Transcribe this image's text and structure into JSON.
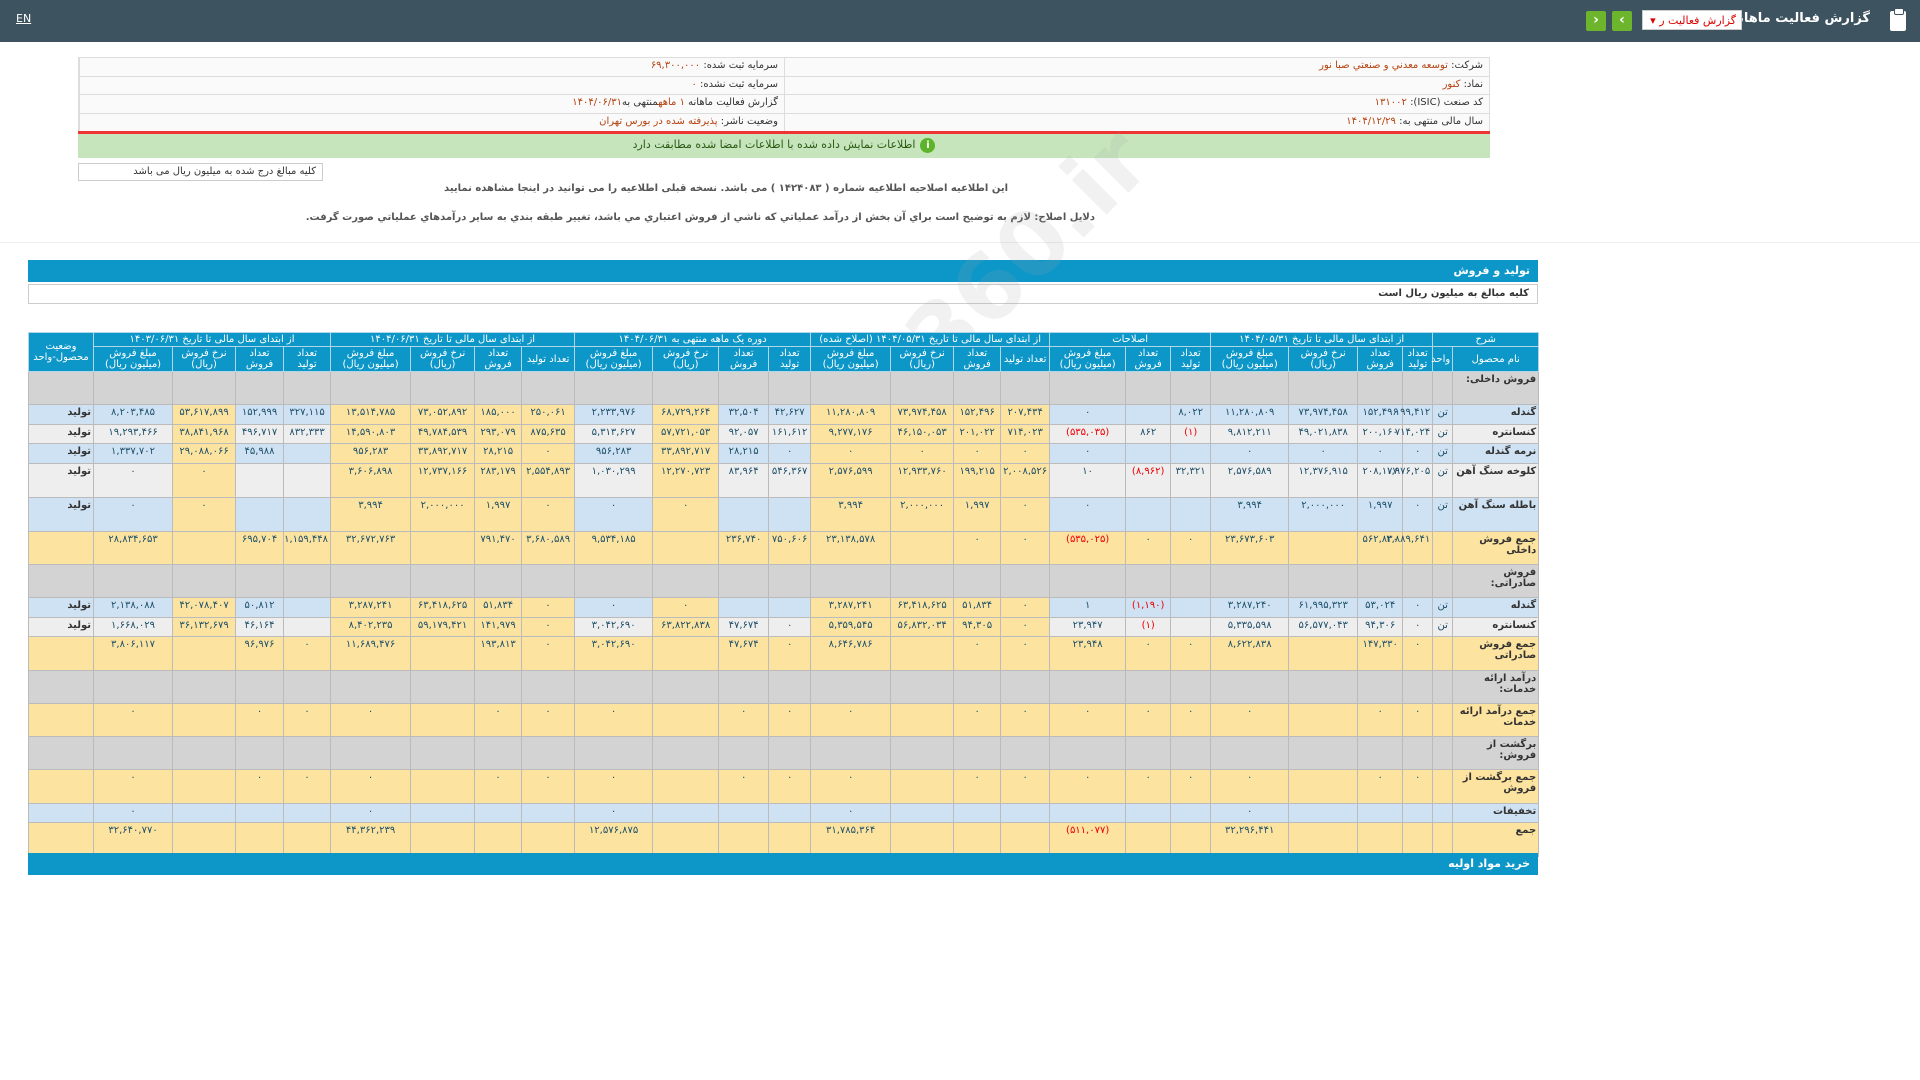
{
  "header": {
    "title": "گزارش فعالیت ماهانه",
    "select_value": "گزارش فعالیت ر",
    "lang": "EN"
  },
  "info": {
    "company_label": "شرکت:",
    "company": "توسعه معدني و صنعتي صبا نور",
    "capital_label": "سرمایه ثبت شده:",
    "capital": "۶۹,۳۰۰,۰۰۰",
    "symbol_label": "نماد:",
    "symbol": "کنور",
    "unreg_capital_label": "سرمایه ثبت نشده:",
    "unreg_capital": "۰",
    "isic_label": "کد صنعت (ISIC):",
    "isic": "۱۳۱۰۰۲",
    "report_label": "گزارش فعالیت ماهانه",
    "report_period": "۱ ماهه",
    "report_end_label": "منتهی به",
    "report_end": "۱۴۰۴/۰۶/۳۱",
    "fiscal_label": "سال مالی منتهی به:",
    "fiscal": "۱۴۰۴/۱۲/۲۹",
    "status_label": "وضعیت ناشر:",
    "status": "پذیرفته شده در بورس تهران"
  },
  "banner": "اطلاعات نمایش داده شده با اطلاعات امضا شده مطابقت دارد",
  "note": "کلیه مبالغ درج شده به میلیون ریال می باشد",
  "message1": "این اطلاعیه اصلاحیه اطلاعیه شماره ( ۱۴۲۴۰۸۳ ) می باشد. نسخه قبلی اطلاعیه را می توانید در اینجا مشاهده نمایید",
  "message2": "دلایل اصلاح: لازم به توضیح است براي آن بخش از درآمد عملياتي که ناشي از فروش اعتباري مي باشد، تغيير طبقه بندي به ساير درآمدهاي عملياتي صورت گرفت.",
  "section_title": "تولید و فروش",
  "section_note": "کلیه مبالغ به میلیون ریال است",
  "next_section": "خرید مواد اولیه",
  "watermark": "@Codal360.ir",
  "table": {
    "desc": "شرح",
    "status_head": "وضعیت محصول-واحد",
    "name_head": "نام محصول",
    "unit_head": "واحد",
    "groups": [
      "از ابتدای سال مالی تا تاریخ ۱۴۰۴/۰۵/۳۱",
      "اصلاحات",
      "از ابتدای سال مالی تا تاریخ ۱۴۰۴/۰۵/۳۱ (اصلاح شده)",
      "دوره یک ماهه منتهی به ۱۴۰۴/۰۶/۳۱",
      "از ابتدای سال مالی تا تاریخ ۱۴۰۴/۰۶/۳۱",
      "از ابتدای سال مالی تا تاریخ ۱۴۰۳/۰۶/۳۱"
    ],
    "sub4": [
      "تعداد تولید",
      "تعداد فروش",
      "نرخ فروش (ریال)",
      "مبلغ فروش (میلیون ریال)"
    ],
    "sub3": [
      "تعداد تولید",
      "تعداد فروش",
      "مبلغ فروش (میلیون ریال)"
    ],
    "rows": [
      {
        "type": "section",
        "label": "فروش داخلی:"
      },
      {
        "type": "product",
        "label": "گندله",
        "unit": "تن",
        "status": "تولید",
        "cells": [
          "۱۹۹,۴۱۲",
          "۱۵۲,۴۹۶",
          "۷۳,۹۷۴,۴۵۸",
          "۱۱,۲۸۰,۸۰۹",
          "۸,۰۲۲",
          "",
          "۰",
          "۲۰۷,۴۳۴",
          "۱۵۲,۴۹۶",
          "۷۳,۹۷۴,۴۵۸",
          "۱۱,۲۸۰,۸۰۹",
          "۴۲,۶۲۷",
          "۳۲,۵۰۴",
          "۶۸,۷۲۹,۲۶۴",
          "۲,۲۳۳,۹۷۶",
          "۲۵۰,۰۶۱",
          "۱۸۵,۰۰۰",
          "۷۳,۰۵۲,۸۹۲",
          "۱۳,۵۱۴,۷۸۵",
          "۳۲۷,۱۱۵",
          "۱۵۲,۹۹۹",
          "۵۳,۶۱۷,۸۹۹",
          "۸,۲۰۳,۴۸۵"
        ]
      },
      {
        "type": "product",
        "label": "کنسانتره",
        "unit": "تن",
        "status": "تولید",
        "cells": [
          "۷۱۴,۰۲۴",
          "۲۰۰,۱۶۰",
          "۴۹,۰۲۱,۸۳۸",
          "۹,۸۱۲,۲۱۱",
          "(۱)",
          "۸۶۲",
          "(۵۳۵,۰۳۵)",
          "۷۱۴,۰۲۳",
          "۲۰۱,۰۲۲",
          "۴۶,۱۵۰,۰۵۳",
          "۹,۲۷۷,۱۷۶",
          "۱۶۱,۶۱۲",
          "۹۲,۰۵۷",
          "۵۷,۷۲۱,۰۵۳",
          "۵,۳۱۳,۶۲۷",
          "۸۷۵,۶۳۵",
          "۲۹۳,۰۷۹",
          "۴۹,۷۸۴,۵۳۹",
          "۱۴,۵۹۰,۸۰۳",
          "۸۳۲,۳۳۳",
          "۴۹۶,۷۱۷",
          "۳۸,۸۴۱,۹۶۸",
          "۱۹,۲۹۳,۴۶۶"
        ]
      },
      {
        "type": "product",
        "label": "نرمه گندله",
        "unit": "تن",
        "status": "تولید",
        "cells": [
          "۰",
          "۰",
          "۰",
          "۰",
          "",
          "",
          "۰",
          "۰",
          "۰",
          "۰",
          "۰",
          "۰",
          "۲۸,۲۱۵",
          "۳۳,۸۹۲,۷۱۷",
          "۹۵۶,۲۸۳",
          "۰",
          "۲۸,۲۱۵",
          "۳۳,۸۹۲,۷۱۷",
          "۹۵۶,۲۸۳",
          "",
          "۴۵,۹۸۸",
          "۲۹,۰۸۸,۰۶۶",
          "۱,۳۳۷,۷۰۲"
        ]
      },
      {
        "type": "product",
        "tall": true,
        "label": "کلوخه سنگ آهن",
        "unit": "تن",
        "status": "تولید",
        "cells": [
          "۱,۹۷۶,۲۰۵",
          "۲۰۸,۱۷۷",
          "۱۲,۳۷۶,۹۱۵",
          "۲,۵۷۶,۵۸۹",
          "۳۲,۳۲۱",
          "(۸,۹۶۲)",
          "۱۰",
          "۲,۰۰۸,۵۲۶",
          "۱۹۹,۲۱۵",
          "۱۲,۹۳۳,۷۶۰",
          "۲,۵۷۶,۵۹۹",
          "۵۴۶,۳۶۷",
          "۸۳,۹۶۴",
          "۱۲,۲۷۰,۷۲۳",
          "۱,۰۳۰,۲۹۹",
          "۲,۵۵۴,۸۹۳",
          "۲۸۳,۱۷۹",
          "۱۲,۷۳۷,۱۶۶",
          "۳,۶۰۶,۸۹۸",
          "",
          "",
          "۰",
          "۰"
        ]
      },
      {
        "type": "product",
        "tall": true,
        "label": "باطله سنگ آهن",
        "unit": "تن",
        "status": "تولید",
        "cells": [
          "۰",
          "۱,۹۹۷",
          "۲,۰۰۰,۰۰۰",
          "۳,۹۹۴",
          "",
          "",
          "۰",
          "۰",
          "۱,۹۹۷",
          "۲,۰۰۰,۰۰۰",
          "۳,۹۹۴",
          "",
          "",
          "۰",
          "۰",
          "۰",
          "۱,۹۹۷",
          "۲,۰۰۰,۰۰۰",
          "۳,۹۹۴",
          "",
          "",
          "۰",
          "۰"
        ]
      },
      {
        "type": "total",
        "label": "جمع فروش داخلی",
        "cells": [
          "۲,۸۸۹,۶۴۱",
          "۵۶۲,۸۳۰",
          "",
          "۲۳,۶۷۳,۶۰۳",
          "۰",
          "۰",
          "(۵۳۵,۰۲۵)",
          "۰",
          "۰",
          "",
          "۲۳,۱۳۸,۵۷۸",
          "۷۵۰,۶۰۶",
          "۲۳۶,۷۴۰",
          "",
          "۹,۵۳۴,۱۸۵",
          "۳,۶۸۰,۵۸۹",
          "۷۹۱,۴۷۰",
          "",
          "۳۲,۶۷۲,۷۶۳",
          "۱,۱۵۹,۴۴۸",
          "۶۹۵,۷۰۴",
          "",
          "۲۸,۸۳۴,۶۵۳"
        ]
      },
      {
        "type": "section",
        "label": "فروش صادراتی:"
      },
      {
        "type": "product",
        "label": "گندله",
        "unit": "تن",
        "status": "تولید",
        "cells": [
          "۰",
          "۵۳,۰۲۴",
          "۶۱,۹۹۵,۳۲۳",
          "۳,۲۸۷,۲۴۰",
          "",
          "(۱,۱۹۰)",
          "۱",
          "۰",
          "۵۱,۸۳۴",
          "۶۳,۴۱۸,۶۲۵",
          "۳,۲۸۷,۲۴۱",
          "",
          "",
          "۰",
          "۰",
          "۰",
          "۵۱,۸۳۴",
          "۶۳,۴۱۸,۶۲۵",
          "۳,۲۸۷,۲۴۱",
          "",
          "۵۰,۸۱۲",
          "۴۲,۰۷۸,۴۰۷",
          "۲,۱۳۸,۰۸۸"
        ]
      },
      {
        "type": "product",
        "label": "کنسانتره",
        "unit": "تن",
        "status": "تولید",
        "cells": [
          "۰",
          "۹۴,۳۰۶",
          "۵۶,۵۷۷,۰۴۳",
          "۵,۳۳۵,۵۹۸",
          "",
          "(۱)",
          "۲۳,۹۴۷",
          "۰",
          "۹۴,۳۰۵",
          "۵۶,۸۳۲,۰۳۴",
          "۵,۳۵۹,۵۴۵",
          "۰",
          "۴۷,۶۷۴",
          "۶۳,۸۲۲,۸۳۸",
          "۳,۰۴۲,۶۹۰",
          "۰",
          "۱۴۱,۹۷۹",
          "۵۹,۱۷۹,۴۲۱",
          "۸,۴۰۲,۲۳۵",
          "",
          "۴۶,۱۶۴",
          "۳۶,۱۳۲,۶۷۹",
          "۱,۶۶۸,۰۲۹"
        ]
      },
      {
        "type": "total",
        "label": "جمع فروش صادراتی",
        "cells": [
          "۰",
          "۱۴۷,۳۳۰",
          "",
          "۸,۶۲۲,۸۳۸",
          "۰",
          "۰",
          "۲۳,۹۴۸",
          "۰",
          "۰",
          "",
          "۸,۶۴۶,۷۸۶",
          "۰",
          "۴۷,۶۷۴",
          "",
          "۳,۰۴۲,۶۹۰",
          "۰",
          "۱۹۳,۸۱۳",
          "",
          "۱۱,۶۸۹,۴۷۶",
          "۰",
          "۹۶,۹۷۶",
          "",
          "۳,۸۰۶,۱۱۷"
        ]
      },
      {
        "type": "section",
        "label": "درآمد ارائه خدمات:"
      },
      {
        "type": "total",
        "label": "جمع درآمد ارائه خدمات",
        "cells": [
          "۰",
          "۰",
          "",
          "۰",
          "۰",
          "۰",
          "۰",
          "۰",
          "۰",
          "",
          "۰",
          "۰",
          "۰",
          "",
          "۰",
          "۰",
          "۰",
          "",
          "۰",
          "۰",
          "۰",
          "",
          "۰"
        ]
      },
      {
        "type": "section",
        "label": "برگشت از فروش:"
      },
      {
        "type": "total",
        "label": "جمع برگشت از فروش",
        "cells": [
          "۰",
          "۰",
          "",
          "۰",
          "۰",
          "۰",
          "۰",
          "۰",
          "۰",
          "",
          "۰",
          "۰",
          "۰",
          "",
          "۰",
          "۰",
          "۰",
          "",
          "۰",
          "۰",
          "۰",
          "",
          "۰"
        ]
      },
      {
        "type": "discount",
        "label": "تخفیفات",
        "cells": [
          "",
          "",
          "",
          "۰",
          "",
          "",
          "",
          "",
          "",
          "",
          "۰",
          "",
          "",
          "",
          "۰",
          "",
          "",
          "",
          "۰",
          "",
          "",
          "",
          "۰"
        ]
      },
      {
        "type": "sum",
        "label": "جمع",
        "cells": [
          "",
          "",
          "",
          "۳۲,۲۹۶,۴۴۱",
          "",
          "",
          "(۵۱۱,۰۷۷)",
          "",
          "",
          "",
          "۳۱,۷۸۵,۳۶۴",
          "",
          "",
          "",
          "۱۲,۵۷۶,۸۷۵",
          "",
          "",
          "",
          "۴۴,۳۶۲,۲۳۹",
          "",
          "",
          "",
          "۳۲,۶۴۰,۷۷۰"
        ]
      }
    ]
  }
}
